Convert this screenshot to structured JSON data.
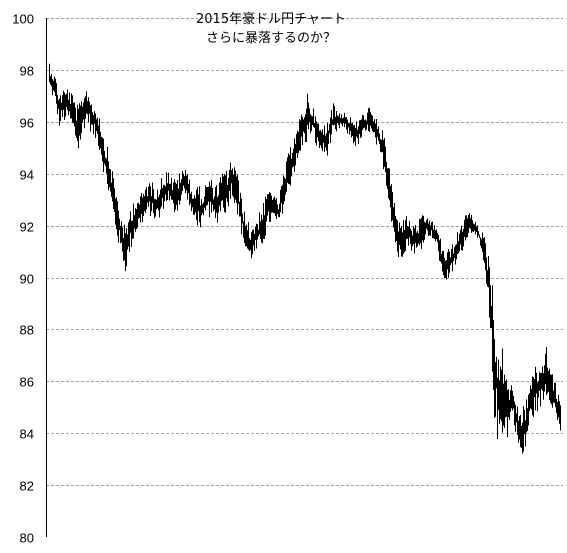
{
  "chart_data": {
    "type": "bar",
    "subtype": "high-low",
    "title_lines": [
      "2015年豪ドル円チャート",
      "さらに暴落するのか？"
    ],
    "xlabel": "",
    "ylabel": "",
    "ylim": [
      80,
      100
    ],
    "y_ticks": [
      80,
      82,
      84,
      86,
      88,
      90,
      92,
      94,
      96,
      98,
      100
    ],
    "y_tick_labels": [
      "80",
      "82",
      "84",
      "86",
      "88",
      "90",
      "92",
      "94",
      "96",
      "98",
      "100"
    ],
    "grid": {
      "horizontal": true,
      "style": "dashed",
      "color": "#a6a6a6"
    },
    "bar_color": "#000000",
    "series": [
      {
        "low": [
          97.2,
          96.8,
          95.8,
          96.0,
          96.0,
          95.5,
          94.8,
          95.6,
          96.0,
          95.4,
          95.2,
          94.4,
          93.6,
          92.6,
          91.6,
          90.8,
          90.2,
          91.0,
          91.6,
          92.0,
          92.2,
          92.4,
          92.2,
          92.1,
          92.8,
          92.9,
          92.4,
          92.6,
          93.2,
          93.0,
          92.2,
          92.0,
          91.8,
          92.4,
          92.2,
          92.0,
          92.6,
          92.4,
          93.2,
          92.8,
          91.8,
          91.0,
          90.6,
          90.8,
          91.0,
          91.4,
          92.0,
          92.2,
          92.0,
          92.6,
          93.2,
          94.0,
          94.2,
          95.0,
          95.2,
          95.6,
          95.0,
          94.8,
          94.6,
          95.2,
          95.4,
          95.8,
          95.6,
          95.4,
          95.0,
          95.2,
          95.4,
          95.6,
          95.2,
          94.8,
          94.2,
          93.0,
          91.6,
          90.6,
          90.8,
          91.2,
          91.0,
          90.8,
          91.2,
          91.6,
          91.6,
          91.2,
          90.2,
          89.8,
          90.0,
          90.4,
          90.8,
          91.4,
          91.6,
          91.8,
          91.2,
          90.2,
          88.6,
          84.8,
          83.4,
          84.0,
          83.8,
          84.8,
          83.6,
          82.6,
          83.8,
          84.4,
          84.8,
          85.0,
          85.4,
          85.2,
          84.6,
          84.0
        ],
        "high": [
          98.4,
          97.9,
          97.2,
          97.3,
          97.4,
          97.0,
          96.6,
          97.2,
          97.4,
          96.8,
          96.6,
          95.8,
          95.2,
          94.4,
          93.4,
          92.4,
          91.8,
          92.8,
          93.2,
          93.2,
          93.6,
          93.8,
          93.6,
          93.8,
          94.0,
          94.2,
          93.8,
          94.0,
          94.2,
          94.2,
          93.4,
          93.6,
          93.4,
          93.8,
          93.8,
          93.6,
          94.0,
          94.2,
          94.6,
          94.4,
          93.4,
          92.4,
          92.0,
          92.2,
          92.6,
          93.0,
          93.6,
          93.2,
          93.0,
          94.0,
          94.8,
          95.6,
          95.8,
          96.6,
          97.2,
          96.6,
          96.2,
          95.8,
          96.0,
          96.8,
          96.6,
          96.4,
          96.4,
          96.2,
          96.0,
          96.2,
          96.4,
          96.6,
          96.2,
          96.0,
          95.6,
          94.6,
          93.2,
          92.2,
          92.4,
          92.4,
          92.0,
          92.2,
          92.4,
          92.4,
          92.2,
          92.0,
          91.4,
          91.0,
          91.2,
          91.6,
          92.0,
          92.4,
          92.6,
          92.2,
          92.0,
          91.6,
          91.2,
          89.8,
          87.0,
          87.4,
          86.2,
          85.8,
          85.2,
          85.0,
          85.6,
          86.4,
          86.6,
          86.8,
          87.4,
          86.6,
          86.0,
          85.2
        ]
      }
    ]
  }
}
